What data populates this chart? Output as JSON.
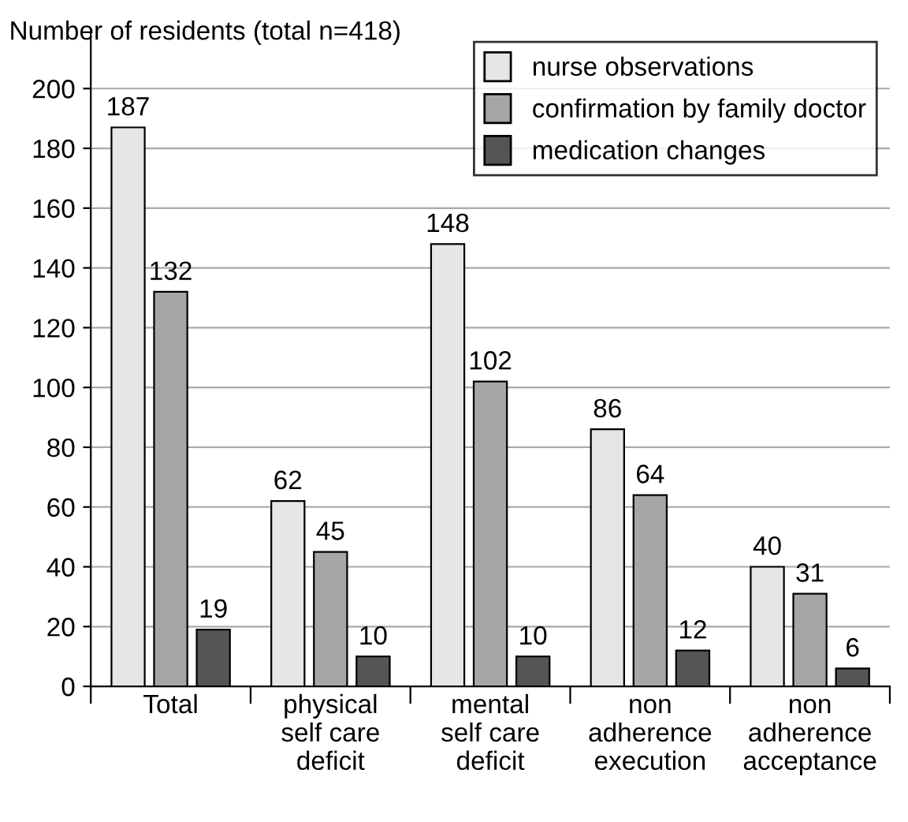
{
  "chart_data": {
    "type": "bar",
    "ylabel": "Number of residents (total n=418)",
    "categories": [
      "Total",
      "physical\nself care\ndeficit",
      "mental\nself care\ndeficit",
      "non\nadherence\nexecution",
      "non\nadherence\nacceptance"
    ],
    "series": [
      {
        "name": "nurse observations",
        "color": "#e6e6e6",
        "values": [
          187,
          62,
          148,
          86,
          40
        ]
      },
      {
        "name": "confirmation by family doctor",
        "color": "#a6a6a6",
        "values": [
          132,
          45,
          102,
          64,
          31
        ]
      },
      {
        "name": "medication changes",
        "color": "#555555",
        "values": [
          19,
          10,
          10,
          12,
          6
        ]
      }
    ],
    "ylim": [
      0,
      220
    ],
    "yticks": [
      0,
      20,
      40,
      60,
      80,
      100,
      120,
      140,
      160,
      180,
      200
    ],
    "grid": "y",
    "legend": "top right",
    "data_labels": true
  }
}
